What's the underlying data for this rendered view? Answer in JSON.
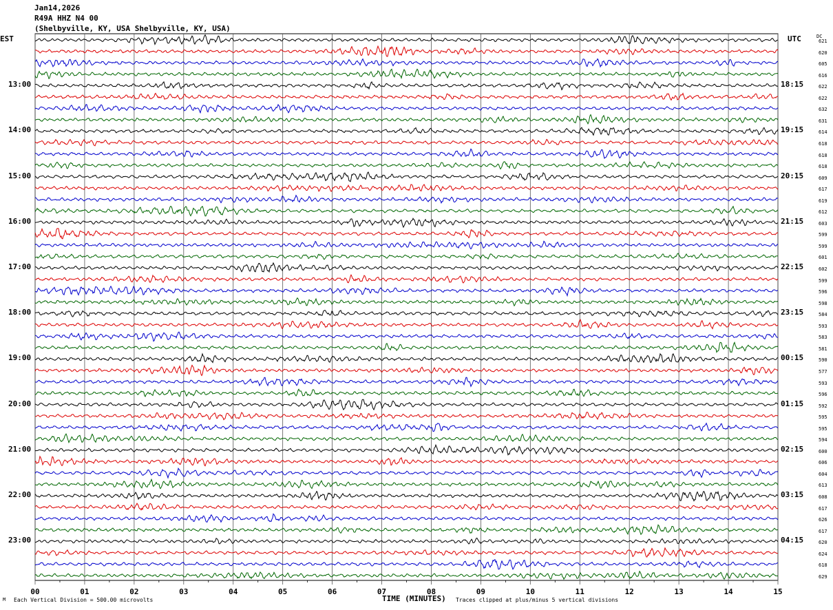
{
  "header": {
    "date": "Jan14,2026",
    "channel": "R49A HHZ N4 00",
    "location": "(Shelbyville, KY, USA Shelbyville, KY, USA)"
  },
  "labels": {
    "left_zone": "EST",
    "right_zone": "UTC",
    "dc_header": "DC"
  },
  "chart_data": {
    "type": "line",
    "title": "",
    "xlabel": "TIME (MINUTES)",
    "x_ticks": [
      "00",
      "01",
      "02",
      "03",
      "04",
      "05",
      "06",
      "07",
      "08",
      "09",
      "10",
      "11",
      "12",
      "13",
      "14",
      "15"
    ],
    "xlim": [
      0,
      15
    ],
    "grid": "vertical lines every minute",
    "trace_colors": [
      "#000000",
      "#dd0000",
      "#0000cc",
      "#006600"
    ],
    "left_hour_labels": [
      "13:00",
      "14:00",
      "15:00",
      "16:00",
      "17:00",
      "18:00",
      "19:00",
      "20:00",
      "21:00",
      "22:00",
      "23:00"
    ],
    "right_hour_labels": [
      "18:15",
      "19:15",
      "20:15",
      "21:15",
      "22:15",
      "23:15",
      "00:15",
      "01:15",
      "02:15",
      "03:15",
      "04:15"
    ],
    "dc_offsets": [
      "621",
      "620",
      "605",
      "616",
      "622",
      "622",
      "632",
      "631",
      "614",
      "618",
      "618",
      "618",
      "609",
      "617",
      "619",
      "612",
      "603",
      "599",
      "599",
      "601",
      "602",
      "599",
      "596",
      "598",
      "584",
      "593",
      "583",
      "581",
      "590",
      "577",
      "593",
      "596",
      "592",
      "595",
      "595",
      "594",
      "600",
      "606",
      "604",
      "613",
      "608",
      "617",
      "626",
      "617",
      "620",
      "624",
      "618",
      "629"
    ]
  },
  "footer": {
    "scale": "Each Vertical Division =  500.00 microvolts",
    "clip_note": "Traces clipped at plus/minus 5 vertical divisions"
  }
}
